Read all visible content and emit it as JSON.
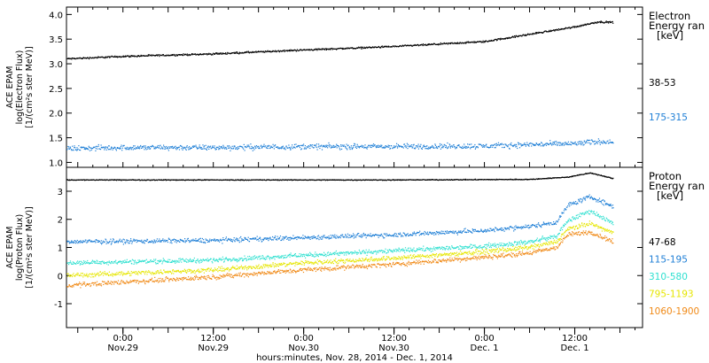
{
  "colors": {
    "axis": "#000000",
    "background": "#ffffff"
  },
  "x_axis": {
    "label": "hours:minutes, Nov. 28, 2014 - Dec. 1, 2014",
    "ticks": [
      {
        "time": "2014-11-29 00:00",
        "hm": "0:00",
        "day": "Nov.29"
      },
      {
        "time": "2014-11-29 12:00",
        "hm": "12:00",
        "day": "Nov.29"
      },
      {
        "time": "2014-11-30 00:00",
        "hm": "0:00",
        "day": "Nov.30"
      },
      {
        "time": "2014-11-30 12:00",
        "hm": "12:00",
        "day": "Nov.30"
      },
      {
        "time": "2014-12-01 00:00",
        "hm": "0:00",
        "day": "Dec. 1"
      },
      {
        "time": "2014-12-01 12:00",
        "hm": "12:00",
        "day": "Dec. 1"
      }
    ],
    "range": [
      "2014-11-28 16:30",
      "2014-12-01 21:00"
    ]
  },
  "chart_data": [
    {
      "type": "scatter",
      "panel": "electron",
      "ylabel_lines": [
        "ACE EPAM",
        "log(Electron Flux)",
        "[1/(cm²s ster MeV)]"
      ],
      "ylim": [
        0.9,
        4.15
      ],
      "yticks": [
        "1.0",
        "1.5",
        "2.0",
        "2.5",
        "3.0",
        "3.5",
        "4.0"
      ],
      "legend": {
        "title_lines": [
          "Electron",
          "Energy ran",
          "[keV]"
        ],
        "position": "right"
      },
      "series": [
        {
          "name": "38-53",
          "color": "#000000",
          "x": [
            "2014-11-28 16:30",
            "2014-11-29 00:00",
            "2014-11-29 12:00",
            "2014-11-30 00:00",
            "2014-11-30 12:00",
            "2014-12-01 00:00",
            "2014-12-01 06:00",
            "2014-12-01 12:00",
            "2014-12-01 15:00",
            "2014-12-01 17:00"
          ],
          "y": [
            3.1,
            3.15,
            3.2,
            3.28,
            3.35,
            3.45,
            3.6,
            3.75,
            3.85,
            3.84
          ]
        },
        {
          "name": "175-315",
          "color": "#1f7fd6",
          "x": [
            "2014-11-28 16:30",
            "2014-11-29 00:00",
            "2014-11-29 12:00",
            "2014-11-30 00:00",
            "2014-11-30 12:00",
            "2014-12-01 00:00",
            "2014-12-01 06:00",
            "2014-12-01 12:00",
            "2014-12-01 15:00",
            "2014-12-01 17:00"
          ],
          "y": [
            1.28,
            1.3,
            1.3,
            1.32,
            1.32,
            1.33,
            1.36,
            1.38,
            1.42,
            1.42
          ]
        }
      ]
    },
    {
      "type": "scatter",
      "panel": "proton",
      "ylabel_lines": [
        "ACE EPAM",
        "log(Proton Flux)",
        "[1/(cm²s ster MeV)]"
      ],
      "ylim": [
        -1.85,
        3.85
      ],
      "yticks": [
        "-1",
        "0",
        "1",
        "2",
        "3"
      ],
      "legend": {
        "title_lines": [
          "Proton",
          "Energy ran",
          "[keV]"
        ],
        "position": "right"
      },
      "series": [
        {
          "name": "47-68",
          "color": "#000000",
          "x": [
            "2014-11-28 16:30",
            "2014-11-29 12:00",
            "2014-11-30 12:00",
            "2014-12-01 06:00",
            "2014-12-01 11:00",
            "2014-12-01 14:00",
            "2014-12-01 17:00"
          ],
          "y": [
            3.4,
            3.4,
            3.4,
            3.42,
            3.5,
            3.65,
            3.45
          ]
        },
        {
          "name": "115-195",
          "color": "#1f7fd6",
          "x": [
            "2014-11-28 16:30",
            "2014-11-29 12:00",
            "2014-11-30 00:00",
            "2014-11-30 12:00",
            "2014-12-01 00:00",
            "2014-12-01 06:00",
            "2014-12-01 09:30",
            "2014-12-01 11:00",
            "2014-12-01 14:00",
            "2014-12-01 17:00"
          ],
          "y": [
            1.2,
            1.25,
            1.35,
            1.45,
            1.6,
            1.75,
            1.9,
            2.5,
            2.8,
            2.45
          ]
        },
        {
          "name": "310-580",
          "color": "#2fe0d0",
          "x": [
            "2014-11-28 16:30",
            "2014-11-29 12:00",
            "2014-11-30 00:00",
            "2014-11-30 12:00",
            "2014-12-01 00:00",
            "2014-12-01 06:00",
            "2014-12-01 09:30",
            "2014-12-01 11:00",
            "2014-12-01 14:00",
            "2014-12-01 17:00"
          ],
          "y": [
            0.45,
            0.55,
            0.72,
            0.88,
            1.05,
            1.2,
            1.4,
            1.95,
            2.3,
            1.85
          ]
        },
        {
          "name": "795-1193",
          "color": "#e6e600",
          "x": [
            "2014-11-28 16:30",
            "2014-11-29 12:00",
            "2014-11-30 00:00",
            "2014-11-30 12:00",
            "2014-12-01 00:00",
            "2014-12-01 06:00",
            "2014-12-01 09:30",
            "2014-12-01 11:00",
            "2014-12-01 14:00",
            "2014-12-01 17:00"
          ],
          "y": [
            0.0,
            0.2,
            0.45,
            0.62,
            0.85,
            1.0,
            1.2,
            1.65,
            1.85,
            1.5
          ]
        },
        {
          "name": "1060-1900",
          "color": "#f08a18",
          "x": [
            "2014-11-28 16:30",
            "2014-11-29 12:00",
            "2014-11-30 00:00",
            "2014-11-30 12:00",
            "2014-12-01 00:00",
            "2014-12-01 06:00",
            "2014-12-01 09:30",
            "2014-12-01 11:00",
            "2014-12-01 14:00",
            "2014-12-01 17:00"
          ],
          "y": [
            -0.35,
            -0.05,
            0.2,
            0.4,
            0.65,
            0.8,
            1.0,
            1.45,
            1.55,
            1.2
          ]
        }
      ]
    }
  ]
}
